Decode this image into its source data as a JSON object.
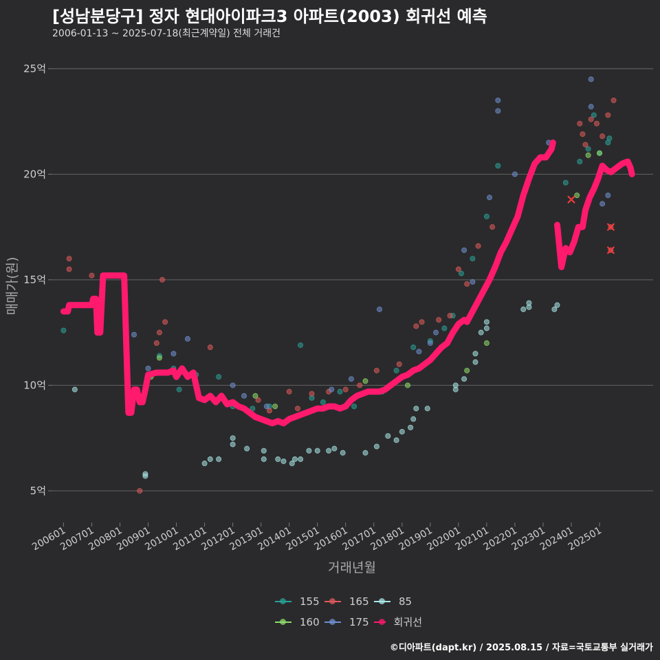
{
  "header": {
    "title": "[성남분당구] 정자 현대아이파크3 아파트(2003) 회귀선 예측",
    "subtitle": "2006-01-13 ~ 2025-07-18(최근계약일) 전체 거래건"
  },
  "footer": {
    "credit": "©디아파트(dapt.kr) / 2025.08.15 / 자료=국토교통부 실거래가"
  },
  "chart_data": {
    "type": "scatter",
    "title": "[성남분당구] 정자 현대아이파크3 아파트(2003) 회귀선 예측",
    "xlabel": "거래년월",
    "ylabel": "매매가(원)",
    "xlim": [
      2005.6,
      2026.9
    ],
    "ylim": [
      3.5,
      26.3
    ],
    "y_ticks": [
      5,
      10,
      15,
      20,
      25
    ],
    "y_tick_labels": [
      "5억",
      "10억",
      "15억",
      "20억",
      "25억"
    ],
    "x_ticks": [
      2006,
      2007,
      2008,
      2009,
      2010,
      2011,
      2012,
      2013,
      2014,
      2015,
      2016,
      2017,
      2018,
      2019,
      2020,
      2021,
      2022,
      2023,
      2024,
      2025
    ],
    "x_tick_labels": [
      "200601",
      "200701",
      "200801",
      "200901",
      "201001",
      "201101",
      "201201",
      "201301",
      "201401",
      "201501",
      "201601",
      "201701",
      "201801",
      "201901",
      "202001",
      "202101",
      "202201",
      "202301",
      "202401",
      "202501"
    ],
    "legend": [
      {
        "name": "155",
        "color": "#2aa198"
      },
      {
        "name": "165",
        "color": "#e05a5a"
      },
      {
        "name": "85",
        "color": "#a8e6e6"
      },
      {
        "name": "160",
        "color": "#8fdc6a"
      },
      {
        "name": "175",
        "color": "#6f8fd0"
      },
      {
        "name": "회귀선",
        "color": "#ff1a6e"
      }
    ],
    "series": [
      {
        "name": "155",
        "color": "#2aa198",
        "points": [
          [
            2006.0,
            12.6
          ],
          [
            2009.4,
            11.4
          ],
          [
            2009.9,
            10.8
          ],
          [
            2010.1,
            9.8
          ],
          [
            2010.7,
            10.5
          ],
          [
            2011.5,
            10.4
          ],
          [
            2012.0,
            9.0
          ],
          [
            2012.7,
            8.9
          ],
          [
            2013.3,
            9.0
          ],
          [
            2014.4,
            11.9
          ],
          [
            2014.8,
            9.4
          ],
          [
            2015.2,
            9.2
          ],
          [
            2015.8,
            9.7
          ],
          [
            2016.3,
            9.0
          ],
          [
            2017.3,
            9.7
          ],
          [
            2017.8,
            10.7
          ],
          [
            2018.4,
            11.8
          ],
          [
            2019.0,
            12.1
          ],
          [
            2019.5,
            12.7
          ],
          [
            2019.8,
            13.3
          ],
          [
            2020.1,
            15.3
          ],
          [
            2020.5,
            16.0
          ],
          [
            2021.0,
            18.0
          ],
          [
            2021.4,
            20.4
          ],
          [
            2023.8,
            19.6
          ],
          [
            2024.3,
            20.6
          ],
          [
            2024.6,
            21.2
          ],
          [
            2024.8,
            22.8
          ],
          [
            2025.0,
            21.0
          ],
          [
            2025.3,
            21.5
          ],
          [
            2025.35,
            21.7
          ]
        ]
      },
      {
        "name": "165",
        "color": "#e05a5a",
        "points": [
          [
            2006.2,
            16.0
          ],
          [
            2006.2,
            15.5
          ],
          [
            2007.0,
            15.2
          ],
          [
            2007.3,
            13.7
          ],
          [
            2008.7,
            5.0
          ],
          [
            2009.1,
            10.5
          ],
          [
            2009.3,
            12.0
          ],
          [
            2009.4,
            12.5
          ],
          [
            2009.6,
            13.0
          ],
          [
            2009.5,
            15.0
          ],
          [
            2011.2,
            11.8
          ],
          [
            2012.9,
            9.3
          ],
          [
            2013.3,
            8.8
          ],
          [
            2014.0,
            9.7
          ],
          [
            2014.3,
            8.9
          ],
          [
            2014.8,
            9.6
          ],
          [
            2015.4,
            9.7
          ],
          [
            2016.0,
            9.8
          ],
          [
            2016.5,
            10.0
          ],
          [
            2017.1,
            10.7
          ],
          [
            2017.9,
            11.0
          ],
          [
            2018.5,
            12.8
          ],
          [
            2018.7,
            13.0
          ],
          [
            2019.3,
            13.1
          ],
          [
            2019.7,
            13.3
          ],
          [
            2020.0,
            15.5
          ],
          [
            2020.3,
            14.8
          ],
          [
            2020.7,
            16.6
          ],
          [
            2021.2,
            17.5
          ],
          [
            2024.3,
            22.4
          ],
          [
            2024.4,
            21.9
          ],
          [
            2024.5,
            21.4
          ],
          [
            2024.7,
            22.6
          ],
          [
            2024.9,
            22.4
          ],
          [
            2025.1,
            21.8
          ],
          [
            2025.3,
            22.8
          ],
          [
            2025.5,
            23.5
          ],
          [
            2025.4,
            17.5
          ],
          [
            2025.4,
            16.4
          ]
        ]
      },
      {
        "name": "85",
        "color": "#a8e6e6",
        "points": [
          [
            2006.4,
            9.8
          ],
          [
            2008.9,
            5.8
          ],
          [
            2008.9,
            5.7
          ],
          [
            2011.0,
            6.3
          ],
          [
            2011.2,
            6.5
          ],
          [
            2011.5,
            6.5
          ],
          [
            2012.0,
            7.2
          ],
          [
            2012.0,
            7.5
          ],
          [
            2012.5,
            7.0
          ],
          [
            2013.1,
            6.9
          ],
          [
            2013.1,
            6.5
          ],
          [
            2013.6,
            6.5
          ],
          [
            2013.8,
            6.4
          ],
          [
            2014.1,
            6.3
          ],
          [
            2014.2,
            6.5
          ],
          [
            2014.4,
            6.5
          ],
          [
            2014.7,
            6.9
          ],
          [
            2015.0,
            6.9
          ],
          [
            2015.4,
            6.9
          ],
          [
            2015.6,
            7.0
          ],
          [
            2015.9,
            6.8
          ],
          [
            2016.7,
            6.8
          ],
          [
            2017.1,
            7.1
          ],
          [
            2017.5,
            7.6
          ],
          [
            2017.8,
            7.4
          ],
          [
            2018.0,
            7.8
          ],
          [
            2018.3,
            8.0
          ],
          [
            2018.4,
            8.4
          ],
          [
            2018.5,
            8.9
          ],
          [
            2018.9,
            8.9
          ],
          [
            2019.9,
            9.8
          ],
          [
            2019.9,
            10.0
          ],
          [
            2020.2,
            10.3
          ],
          [
            2020.6,
            11.1
          ],
          [
            2020.6,
            11.5
          ],
          [
            2020.8,
            12.5
          ],
          [
            2021.0,
            12.7
          ],
          [
            2021.0,
            13.0
          ],
          [
            2022.3,
            13.6
          ],
          [
            2022.5,
            13.9
          ],
          [
            2022.5,
            13.7
          ],
          [
            2023.4,
            13.6
          ],
          [
            2023.5,
            13.8
          ]
        ]
      },
      {
        "name": "160",
        "color": "#8fdc6a",
        "points": [
          [
            2009.1,
            10.4
          ],
          [
            2009.4,
            11.3
          ],
          [
            2012.8,
            9.5
          ],
          [
            2013.5,
            9.0
          ],
          [
            2016.7,
            10.2
          ],
          [
            2018.2,
            10.0
          ],
          [
            2020.3,
            10.7
          ],
          [
            2021.0,
            12.0
          ],
          [
            2024.2,
            19.0
          ],
          [
            2024.6,
            20.9
          ],
          [
            2025.0,
            21.0
          ]
        ]
      },
      {
        "name": "175",
        "color": "#6f8fd0",
        "points": [
          [
            2008.5,
            12.4
          ],
          [
            2009.0,
            10.8
          ],
          [
            2009.9,
            11.5
          ],
          [
            2010.4,
            12.2
          ],
          [
            2012.0,
            10.0
          ],
          [
            2012.4,
            9.5
          ],
          [
            2013.2,
            9.0
          ],
          [
            2015.5,
            9.8
          ],
          [
            2016.2,
            10.3
          ],
          [
            2017.2,
            13.6
          ],
          [
            2018.6,
            11.6
          ],
          [
            2019.0,
            12.0
          ],
          [
            2019.2,
            12.5
          ],
          [
            2020.2,
            16.4
          ],
          [
            2020.5,
            14.9
          ],
          [
            2021.1,
            18.9
          ],
          [
            2021.4,
            23.5
          ],
          [
            2021.4,
            23.0
          ],
          [
            2022.0,
            20.0
          ],
          [
            2023.2,
            21.5
          ],
          [
            2024.7,
            24.5
          ],
          [
            2024.7,
            23.2
          ],
          [
            2025.1,
            18.6
          ],
          [
            2025.3,
            19.0
          ]
        ]
      }
    ],
    "cross_marks": [
      [
        2024.0,
        18.8
      ],
      [
        2025.4,
        17.5
      ],
      [
        2025.4,
        16.4
      ]
    ],
    "regression_line": {
      "name": "회귀선",
      "color": "#ff1a6e",
      "segments": [
        [
          [
            2006.0,
            13.5
          ],
          [
            2006.15,
            13.5
          ],
          [
            2006.2,
            13.8
          ],
          [
            2006.5,
            13.8
          ],
          [
            2006.8,
            13.8
          ],
          [
            2007.0,
            13.8
          ],
          [
            2007.05,
            14.1
          ],
          [
            2007.15,
            14.1
          ],
          [
            2007.2,
            12.5
          ],
          [
            2007.3,
            12.5
          ],
          [
            2007.4,
            15.2
          ],
          [
            2007.7,
            15.2
          ],
          [
            2008.0,
            15.2
          ],
          [
            2008.15,
            15.2
          ],
          [
            2008.3,
            8.7
          ],
          [
            2008.4,
            8.7
          ],
          [
            2008.5,
            9.8
          ],
          [
            2008.6,
            9.8
          ],
          [
            2008.7,
            9.2
          ],
          [
            2008.8,
            9.2
          ],
          [
            2008.9,
            9.8
          ],
          [
            2009.0,
            10.5
          ],
          [
            2009.3,
            10.6
          ],
          [
            2009.7,
            10.6
          ],
          [
            2009.9,
            10.7
          ],
          [
            2010.0,
            10.4
          ],
          [
            2010.2,
            10.8
          ],
          [
            2010.4,
            10.4
          ],
          [
            2010.6,
            10.6
          ],
          [
            2010.8,
            9.4
          ],
          [
            2011.0,
            9.3
          ],
          [
            2011.2,
            9.5
          ],
          [
            2011.4,
            9.2
          ],
          [
            2011.6,
            9.5
          ],
          [
            2011.8,
            9.1
          ],
          [
            2012.0,
            9.2
          ],
          [
            2012.2,
            9.0
          ],
          [
            2012.4,
            8.9
          ],
          [
            2012.6,
            8.7
          ],
          [
            2012.8,
            8.5
          ],
          [
            2013.0,
            8.4
          ],
          [
            2013.2,
            8.3
          ],
          [
            2013.4,
            8.2
          ],
          [
            2013.6,
            8.3
          ],
          [
            2013.8,
            8.2
          ],
          [
            2014.0,
            8.4
          ],
          [
            2014.2,
            8.5
          ],
          [
            2014.4,
            8.6
          ],
          [
            2014.6,
            8.7
          ],
          [
            2014.8,
            8.8
          ],
          [
            2015.0,
            8.9
          ],
          [
            2015.2,
            8.9
          ],
          [
            2015.4,
            9.0
          ],
          [
            2015.6,
            9.0
          ],
          [
            2015.8,
            8.9
          ],
          [
            2016.0,
            9.0
          ],
          [
            2016.2,
            9.3
          ],
          [
            2016.4,
            9.5
          ],
          [
            2016.6,
            9.6
          ],
          [
            2016.8,
            9.7
          ],
          [
            2017.0,
            9.7
          ],
          [
            2017.2,
            9.7
          ],
          [
            2017.4,
            9.8
          ],
          [
            2017.6,
            10.0
          ],
          [
            2017.8,
            10.2
          ],
          [
            2018.0,
            10.4
          ],
          [
            2018.2,
            10.5
          ],
          [
            2018.4,
            10.7
          ],
          [
            2018.6,
            10.8
          ],
          [
            2018.8,
            11.0
          ],
          [
            2019.0,
            11.2
          ],
          [
            2019.2,
            11.5
          ],
          [
            2019.4,
            11.8
          ],
          [
            2019.6,
            12.0
          ],
          [
            2019.8,
            12.5
          ],
          [
            2020.0,
            12.9
          ],
          [
            2020.2,
            13.1
          ],
          [
            2020.3,
            13.0
          ],
          [
            2020.5,
            13.5
          ],
          [
            2020.7,
            14.0
          ],
          [
            2020.9,
            14.5
          ],
          [
            2021.1,
            15.0
          ],
          [
            2021.3,
            15.6
          ],
          [
            2021.5,
            16.3
          ],
          [
            2021.7,
            16.8
          ],
          [
            2021.9,
            17.4
          ],
          [
            2022.1,
            18.0
          ],
          [
            2022.3,
            19.0
          ],
          [
            2022.5,
            19.8
          ],
          [
            2022.7,
            20.5
          ],
          [
            2022.9,
            20.8
          ],
          [
            2023.1,
            20.8
          ],
          [
            2023.3,
            21.2
          ],
          [
            2023.35,
            21.5
          ]
        ],
        [
          [
            2023.5,
            17.6
          ],
          [
            2023.65,
            15.6
          ],
          [
            2023.8,
            16.5
          ],
          [
            2023.95,
            16.3
          ],
          [
            2024.1,
            16.8
          ],
          [
            2024.25,
            17.5
          ],
          [
            2024.4,
            17.5
          ],
          [
            2024.5,
            18.3
          ],
          [
            2024.65,
            18.9
          ],
          [
            2024.8,
            19.3
          ],
          [
            2024.95,
            19.8
          ],
          [
            2025.1,
            20.4
          ],
          [
            2025.25,
            20.2
          ],
          [
            2025.4,
            20.1
          ],
          [
            2025.6,
            20.3
          ],
          [
            2025.8,
            20.5
          ],
          [
            2026.0,
            20.6
          ],
          [
            2026.1,
            20.3
          ],
          [
            2026.15,
            20.0
          ]
        ]
      ]
    }
  }
}
